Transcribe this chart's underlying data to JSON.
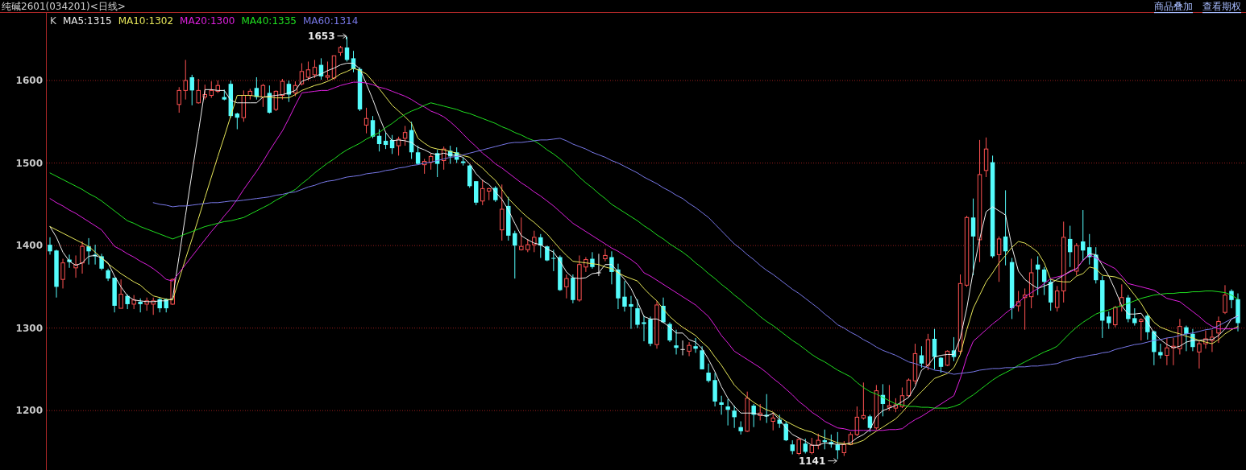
{
  "chart_data": {
    "type": "candlestick",
    "title": "纯碱2601(034201)<日线>",
    "categories": [
      null,
      null,
      null,
      null,
      null,
      null,
      null,
      null,
      null,
      null,
      null,
      null,
      null,
      null,
      null,
      null,
      null,
      null,
      null,
      null,
      null,
      null,
      null,
      null,
      null,
      null,
      null,
      null,
      null,
      null,
      null,
      null,
      null,
      null,
      null,
      null,
      null,
      null,
      null,
      null,
      null,
      null,
      null,
      null,
      null,
      null,
      null,
      null,
      null,
      null,
      null,
      null,
      null,
      null,
      null,
      null,
      null,
      null,
      null,
      null,
      null,
      null,
      null,
      null,
      null,
      null,
      null,
      null,
      null,
      null,
      null,
      null,
      null,
      null,
      null,
      null,
      null,
      null,
      null,
      null,
      null,
      null,
      null,
      null,
      null,
      null,
      null,
      null,
      null,
      null,
      null,
      null,
      null,
      null,
      null,
      null,
      null,
      null,
      null,
      null,
      null,
      null,
      null,
      null,
      null,
      null,
      null,
      null,
      null,
      null,
      null,
      null,
      null,
      null,
      null,
      null,
      null,
      null,
      null,
      null,
      null,
      null,
      null,
      null,
      null,
      null,
      null,
      null,
      null,
      null,
      null,
      null,
      null,
      null,
      null,
      null,
      null,
      null,
      null,
      null,
      null,
      null,
      null,
      null,
      null,
      null,
      null,
      null,
      null,
      null,
      null,
      null,
      null,
      null,
      null,
      null,
      null,
      null,
      null,
      null,
      null,
      null,
      null,
      null,
      null,
      null,
      null,
      null,
      null,
      null,
      null,
      null,
      null,
      null,
      null,
      null,
      null,
      null,
      null,
      null,
      null,
      null,
      null,
      null,
      null
    ],
    "series": [
      {
        "type": "candlestick",
        "colors": [
          "#54fcfc",
          "#54fcfc",
          "#ff5252",
          "#54fcfc",
          "#ff5252",
          "#ff5252",
          "#54fcfc",
          "#54fcfc",
          "#54fcfc",
          "#54fcfc",
          "#54fcfc",
          "#ff5252",
          "#54fcfc",
          "#ff5252",
          "#54fcfc",
          "#ff5252",
          "#ff5252",
          "#54fcfc",
          "#54fcfc",
          "#ff5252",
          "#ff5252",
          "#ff5252",
          "#54fcfc",
          "#ff5252",
          "#ff5252",
          "#ff5252",
          "#ff5252",
          "#54fcfc",
          "#54fcfc",
          "#54fcfc",
          "#ff5252",
          "#ff5252",
          "#54fcfc",
          "#ff5252",
          "#54fcfc",
          "#ff5252",
          "#ff5252",
          "#54fcfc",
          "#ff5252",
          "#ff5252",
          "#ff5252",
          "#ff5252",
          "#54fcfc",
          "#ff5252",
          "#ff5252",
          "#ff5252",
          "#54fcfc",
          "#54fcfc",
          "#54fcfc",
          "#ff5252",
          "#54fcfc",
          "#54fcfc",
          "#54fcfc",
          "#54fcfc",
          "#ff5252",
          "#ff5252",
          "#54fcfc",
          "#54fcfc",
          "#ff5252",
          "#ff5252",
          "#54fcfc",
          "#ff5252",
          "#54fcfc",
          "#54fcfc",
          "#54fcfc",
          "#54fcfc",
          "#54fcfc",
          "#ff5252",
          "#ff5252",
          "#54fcfc",
          "#ff5252",
          "#54fcfc",
          "#54fcfc",
          "#ff5252",
          "#ff5252",
          "#ff5252",
          "#54fcfc",
          "#54fcfc",
          "#54fcfc",
          "#54fcfc",
          "#ff5252",
          "#54fcfc",
          "#ff5252",
          "#ff5252",
          "#54fcfc",
          "#f0f0f0",
          "#ff5252",
          "#54fcfc",
          "#54fcfc",
          "#54fcfc",
          "#54fcfc",
          "#54fcfc",
          "#54fcfc",
          "#54fcfc",
          "#ff5252",
          "#54fcfc",
          "#54fcfc",
          "#54fcfc",
          "#f0f0f0",
          "#ff5252",
          "#54fcfc",
          "#54fcfc",
          "#54fcfc",
          "#54fcfc",
          "#54fcfc",
          "#54fcfc",
          "#54fcfc",
          "#54fcfc",
          "#ff5252",
          "#54fcfc",
          "#ff5252",
          "#54fcfc",
          "#ff5252",
          "#54fcfc",
          "#54fcfc",
          "#54fcfc",
          "#ff5252",
          "#54fcfc",
          "#ff5252",
          "#ff5252",
          "#54fcfc",
          "#54fcfc",
          "#54fcfc",
          "#ff5252",
          "#ff5252",
          "#ff5252",
          "#ff5252",
          "#54fcfc",
          "#ff5252",
          "#54fcfc",
          "#ff5252",
          "#ff5252",
          "#ff5252",
          "#ff5252",
          "#ff5252",
          "#54fcfc",
          "#ff5252",
          "#54fcfc",
          "#54fcfc",
          "#ff5252",
          "#54fcfc",
          "#ff5252",
          "#ff5252",
          "#54fcfc",
          "#ff5252",
          "#ff5252",
          "#54fcfc",
          "#ff5252",
          "#54fcfc",
          "#54fcfc",
          "#ff5252",
          "#ff5252",
          "#ff5252",
          "#54fcfc",
          "#54fcfc",
          "#54fcfc",
          "#ff5252",
          "#ff5252",
          "#54fcfc",
          "#ff5252",
          "#54fcfc",
          "#54fcfc",
          "#54fcfc",
          "#54fcfc",
          "#54fcfc",
          "#ff5252",
          "#ff5252",
          "#54fcfc",
          "#54fcfc",
          "#ff5252",
          "#54fcfc",
          "#54fcfc",
          "#54fcfc",
          "#ff5252",
          "#ff5252",
          "#ff5252",
          "#54fcfc",
          "#54fcfc",
          "#ff5252",
          "#ff5252",
          "#ff5252",
          "#ff5252",
          "#ff5252",
          "#54fcfc",
          "#54fcfc"
        ],
        "ohlc": [
          [
            1401,
            1410,
            1389,
            1393
          ],
          [
            1394,
            1395,
            1337,
            1350
          ],
          [
            1359,
            1384,
            1348,
            1379
          ],
          [
            1383,
            1389,
            1373,
            1380
          ],
          [
            1373,
            1388,
            1361,
            1377
          ],
          [
            1379,
            1405,
            1366,
            1399
          ],
          [
            1399,
            1409,
            1377,
            1393
          ],
          [
            1389,
            1401,
            1377,
            1387
          ],
          [
            1387,
            1390,
            1370,
            1372
          ],
          [
            1370,
            1372,
            1357,
            1360
          ],
          [
            1361,
            1361,
            1319,
            1327
          ],
          [
            1324,
            1359,
            1324,
            1341
          ],
          [
            1339,
            1341,
            1323,
            1329
          ],
          [
            1329,
            1340,
            1323,
            1334
          ],
          [
            1332,
            1336,
            1319,
            1329
          ],
          [
            1329,
            1337,
            1321,
            1333
          ],
          [
            1329,
            1337,
            1316,
            1333
          ],
          [
            1335,
            1337,
            1319,
            1324
          ],
          [
            1335,
            1336,
            1319,
            1324
          ],
          [
            1329,
            1360,
            1328,
            1359
          ],
          [
            1571,
            1592,
            1561,
            1588
          ],
          [
            1588,
            1625,
            1577,
            1600
          ],
          [
            1604,
            1607,
            1570,
            1588
          ],
          [
            1573,
            1602,
            1572,
            1588
          ],
          [
            1580,
            1595,
            1577,
            1583
          ],
          [
            1582,
            1599,
            1579,
            1588
          ],
          [
            1587,
            1600,
            1585,
            1594
          ],
          [
            1580,
            1589,
            1576,
            1577
          ],
          [
            1596,
            1600,
            1555,
            1557
          ],
          [
            1560,
            1561,
            1541,
            1555
          ],
          [
            1555,
            1588,
            1550,
            1582
          ],
          [
            1582,
            1590,
            1577,
            1587
          ],
          [
            1591,
            1604,
            1577,
            1580
          ],
          [
            1580,
            1596,
            1568,
            1594
          ],
          [
            1585,
            1594,
            1560,
            1561
          ],
          [
            1565,
            1588,
            1563,
            1587
          ],
          [
            1582,
            1602,
            1577,
            1599
          ],
          [
            1596,
            1600,
            1574,
            1583
          ],
          [
            1585,
            1599,
            1581,
            1594
          ],
          [
            1596,
            1621,
            1594,
            1611
          ],
          [
            1604,
            1623,
            1600,
            1613
          ],
          [
            1607,
            1625,
            1603,
            1616
          ],
          [
            1619,
            1627,
            1601,
            1605
          ],
          [
            1604,
            1623,
            1601,
            1606
          ],
          [
            1603,
            1630,
            1601,
            1630
          ],
          [
            1634,
            1642,
            1630,
            1640
          ],
          [
            1640,
            1653,
            1623,
            1625
          ],
          [
            1627,
            1636,
            1610,
            1614
          ],
          [
            1614,
            1616,
            1563,
            1565
          ],
          [
            1546,
            1567,
            1536,
            1554
          ],
          [
            1552,
            1557,
            1530,
            1532
          ],
          [
            1533,
            1541,
            1514,
            1523
          ],
          [
            1527,
            1537,
            1517,
            1522
          ],
          [
            1528,
            1534,
            1511,
            1518
          ],
          [
            1521,
            1532,
            1509,
            1529
          ],
          [
            1530,
            1545,
            1521,
            1537
          ],
          [
            1540,
            1550,
            1505,
            1513
          ],
          [
            1513,
            1521,
            1498,
            1499
          ],
          [
            1498,
            1505,
            1487,
            1502
          ],
          [
            1501,
            1512,
            1492,
            1508
          ],
          [
            1512,
            1516,
            1483,
            1499
          ],
          [
            1503,
            1520,
            1492,
            1517
          ],
          [
            1515,
            1521,
            1499,
            1508
          ],
          [
            1513,
            1519,
            1500,
            1504
          ],
          [
            1502,
            1507,
            1497,
            1500
          ],
          [
            1497,
            1498,
            1470,
            1472
          ],
          [
            1478,
            1478,
            1449,
            1452
          ],
          [
            1454,
            1480,
            1449,
            1469
          ],
          [
            1466,
            1470,
            1455,
            1469
          ],
          [
            1470,
            1472,
            1453,
            1455
          ],
          [
            1419,
            1474,
            1406,
            1444
          ],
          [
            1448,
            1459,
            1406,
            1412
          ],
          [
            1415,
            1418,
            1360,
            1400
          ],
          [
            1395,
            1434,
            1394,
            1399
          ],
          [
            1395,
            1408,
            1392,
            1401
          ],
          [
            1401,
            1418,
            1392,
            1410
          ],
          [
            1410,
            1414,
            1385,
            1400
          ],
          [
            1399,
            1400,
            1381,
            1382
          ],
          [
            1385,
            1395,
            1369,
            1384
          ],
          [
            1386,
            1388,
            1345,
            1346
          ],
          [
            1350,
            1365,
            1336,
            1360
          ],
          [
            1361,
            1365,
            1330,
            1334
          ],
          [
            1334,
            1388,
            1332,
            1377
          ],
          [
            1374,
            1386,
            1368,
            1383
          ],
          [
            1384,
            1392,
            1372,
            1374
          ],
          [
            1367,
            1390,
            1363,
            1367
          ],
          [
            1384,
            1396,
            1381,
            1388
          ],
          [
            1386,
            1393,
            1353,
            1368
          ],
          [
            1371,
            1378,
            1323,
            1336
          ],
          [
            1338,
            1357,
            1320,
            1326
          ],
          [
            1329,
            1339,
            1299,
            1326
          ],
          [
            1324,
            1335,
            1300,
            1304
          ],
          [
            1307,
            1315,
            1284,
            1305
          ],
          [
            1311,
            1314,
            1278,
            1281
          ],
          [
            1280,
            1333,
            1275,
            1328
          ],
          [
            1327,
            1337,
            1306,
            1307
          ],
          [
            1305,
            1307,
            1283,
            1285
          ],
          [
            1279,
            1298,
            1268,
            1276
          ],
          [
            1274,
            1285,
            1267,
            1274
          ],
          [
            1272,
            1283,
            1266,
            1279
          ],
          [
            1278,
            1288,
            1270,
            1275
          ],
          [
            1273,
            1278,
            1250,
            1250
          ],
          [
            1246,
            1257,
            1234,
            1236
          ],
          [
            1237,
            1246,
            1205,
            1211
          ],
          [
            1210,
            1218,
            1195,
            1207
          ],
          [
            1205,
            1214,
            1182,
            1201
          ],
          [
            1200,
            1206,
            1179,
            1192
          ],
          [
            1180,
            1187,
            1171,
            1175
          ],
          [
            1175,
            1223,
            1174,
            1215
          ],
          [
            1206,
            1208,
            1180,
            1195
          ],
          [
            1194,
            1208,
            1188,
            1197
          ],
          [
            1195,
            1220,
            1185,
            1193
          ],
          [
            1187,
            1198,
            1176,
            1191
          ],
          [
            1189,
            1195,
            1179,
            1184
          ],
          [
            1184,
            1187,
            1163,
            1164
          ],
          [
            1159,
            1164,
            1147,
            1151
          ],
          [
            1148,
            1167,
            1146,
            1165
          ],
          [
            1160,
            1166,
            1148,
            1150
          ],
          [
            1149,
            1167,
            1147,
            1158
          ],
          [
            1158,
            1172,
            1153,
            1164
          ],
          [
            1164,
            1177,
            1153,
            1162
          ],
          [
            1162,
            1171,
            1155,
            1159
          ],
          [
            1159,
            1174,
            1141,
            1152
          ],
          [
            1149,
            1163,
            1145,
            1159
          ],
          [
            1159,
            1174,
            1158,
            1171
          ],
          [
            1171,
            1205,
            1169,
            1192
          ],
          [
            1191,
            1234,
            1189,
            1194
          ],
          [
            1193,
            1195,
            1174,
            1179
          ],
          [
            1179,
            1231,
            1177,
            1224
          ],
          [
            1219,
            1232,
            1193,
            1208
          ],
          [
            1204,
            1231,
            1200,
            1206
          ],
          [
            1203,
            1215,
            1198,
            1207
          ],
          [
            1205,
            1228,
            1203,
            1218
          ],
          [
            1218,
            1239,
            1216,
            1237
          ],
          [
            1236,
            1281,
            1232,
            1269
          ],
          [
            1267,
            1278,
            1252,
            1257
          ],
          [
            1255,
            1293,
            1249,
            1286
          ],
          [
            1287,
            1299,
            1250,
            1265
          ],
          [
            1264,
            1265,
            1246,
            1253
          ],
          [
            1255,
            1273,
            1254,
            1272
          ],
          [
            1273,
            1289,
            1260,
            1265
          ],
          [
            1272,
            1365,
            1268,
            1354
          ],
          [
            1352,
            1436,
            1350,
            1434
          ],
          [
            1434,
            1457,
            1364,
            1411
          ],
          [
            1407,
            1528,
            1380,
            1486
          ],
          [
            1491,
            1531,
            1483,
            1517
          ],
          [
            1501,
            1509,
            1385,
            1387
          ],
          [
            1389,
            1411,
            1356,
            1408
          ],
          [
            1411,
            1467,
            1376,
            1393
          ],
          [
            1380,
            1385,
            1311,
            1324
          ],
          [
            1327,
            1345,
            1320,
            1332
          ],
          [
            1337,
            1348,
            1298,
            1340
          ],
          [
            1338,
            1384,
            1324,
            1367
          ],
          [
            1377,
            1387,
            1340,
            1371
          ],
          [
            1371,
            1374,
            1340,
            1356
          ],
          [
            1356,
            1359,
            1321,
            1331
          ],
          [
            1325,
            1351,
            1320,
            1345
          ],
          [
            1345,
            1429,
            1331,
            1410
          ],
          [
            1408,
            1424,
            1374,
            1392
          ],
          [
            1369,
            1403,
            1364,
            1400
          ],
          [
            1405,
            1443,
            1382,
            1394
          ],
          [
            1398,
            1414,
            1377,
            1386
          ],
          [
            1389,
            1398,
            1354,
            1358
          ],
          [
            1358,
            1363,
            1288,
            1309
          ],
          [
            1314,
            1320,
            1299,
            1306
          ],
          [
            1304,
            1327,
            1301,
            1325
          ],
          [
            1327,
            1353,
            1320,
            1337
          ],
          [
            1337,
            1340,
            1307,
            1311
          ],
          [
            1312,
            1324,
            1303,
            1306
          ],
          [
            1308,
            1312,
            1285,
            1310
          ],
          [
            1315,
            1317,
            1286,
            1295
          ],
          [
            1296,
            1297,
            1255,
            1271
          ],
          [
            1271,
            1281,
            1263,
            1267
          ],
          [
            1267,
            1288,
            1255,
            1276
          ],
          [
            1276,
            1288,
            1255,
            1278
          ],
          [
            1275,
            1311,
            1268,
            1302
          ],
          [
            1301,
            1303,
            1272,
            1293
          ],
          [
            1293,
            1299,
            1272,
            1277
          ],
          [
            1271,
            1284,
            1251,
            1281
          ],
          [
            1281,
            1297,
            1275,
            1287
          ],
          [
            1285,
            1298,
            1271,
            1289
          ],
          [
            1294,
            1314,
            1282,
            1308
          ],
          [
            1319,
            1352,
            1317,
            1340
          ],
          [
            1345,
            1347,
            1324,
            1334
          ],
          [
            1335,
            1342,
            1296,
            1306
          ]
        ]
      },
      {
        "type": "line",
        "name": "MA5:1315",
        "color": "#f0f0f0",
        "values": [
          1423,
          1410,
          1392,
          1381,
          1376,
          1379,
          1387,
          1388,
          1385,
          1379,
          1363,
          1350,
          1339,
          1334,
          1333,
          1332,
          1332,
          1333,
          1333,
          1336,
          1387,
          1437,
          1488,
          1538,
          1589,
          1589,
          1588,
          1588,
          1576,
          1573,
          1573,
          1573,
          1573,
          1580,
          1581,
          1582,
          1583,
          1585,
          1588,
          1599,
          1602,
          1605,
          1608,
          1612,
          1615,
          1619,
          1621,
          1621,
          1614,
          1596,
          1577,
          1556,
          1537,
          1527,
          1528,
          1527,
          1525,
          1519,
          1516,
          1512,
          1510,
          1512,
          1510,
          1509,
          1507,
          1499,
          1487,
          1479,
          1474,
          1465,
          1456,
          1443,
          1427,
          1412,
          1407,
          1403,
          1401,
          1396,
          1392,
          1381,
          1368,
          1361,
          1360,
          1361,
          1366,
          1367,
          1377,
          1377,
          1368,
          1359,
          1348,
          1332,
          1314,
          1311,
          1311,
          1307,
          1301,
          1294,
          1294,
          1286,
          1283,
          1275,
          1262,
          1247,
          1229,
          1215,
          1205,
          1197,
          1197,
          1197,
          1195,
          1193,
          1197,
          1189,
          1179,
          1171,
          1167,
          1163,
          1158,
          1158,
          1161,
          1160,
          1159,
          1159,
          1161,
          1167,
          1171,
          1177,
          1193,
          1200,
          1203,
          1206,
          1211,
          1216,
          1229,
          1249,
          1255,
          1265,
          1267,
          1268,
          1268,
          1288,
          1324,
          1369,
          1408,
          1441,
          1447,
          1442,
          1437,
          1398,
          1369,
          1359,
          1353,
          1348,
          1351,
          1354,
          1359,
          1364,
          1369,
          1372,
          1382,
          1390,
          1389,
          1376,
          1363,
          1346,
          1327,
          1317,
          1317,
          1318,
          1307,
          1294,
          1286,
          1280,
          1276,
          1278,
          1283,
          1285,
          1285,
          1286,
          1286,
          1291,
          1299,
          1311,
          1315
        ]
      },
      {
        "type": "line",
        "name": "MA10:1302",
        "color": "#e8e85a",
        "values": [
          1423,
          1419,
          1415,
          1411,
          1407,
          1403,
          1399,
          1392,
          1385,
          1378,
          1372,
          1366,
          1361,
          1356,
          1352,
          1345,
          1339,
          1337,
          1335,
          1334,
          1359,
          1384,
          1408,
          1433,
          1458,
          1483,
          1508,
          1532,
          1557,
          1582,
          1582,
          1582,
          1581,
          1580,
          1580,
          1579,
          1579,
          1579,
          1583,
          1588,
          1591,
          1594,
          1596,
          1599,
          1603,
          1608,
          1611,
          1615,
          1612,
          1608,
          1599,
          1590,
          1580,
          1570,
          1563,
          1556,
          1548,
          1530,
          1524,
          1519,
          1517,
          1516,
          1514,
          1512,
          1509,
          1507,
          1500,
          1494,
          1486,
          1479,
          1468,
          1457,
          1449,
          1441,
          1434,
          1428,
          1421,
          1414,
          1405,
          1396,
          1388,
          1381,
          1380,
          1379,
          1378,
          1377,
          1374,
          1372,
          1367,
          1363,
          1360,
          1357,
          1348,
          1340,
          1333,
          1323,
          1314,
          1307,
          1301,
          1296,
          1291,
          1283,
          1276,
          1265,
          1255,
          1243,
          1231,
          1223,
          1216,
          1210,
          1205,
          1201,
          1198,
          1192,
          1187,
          1183,
          1179,
          1176,
          1174,
          1170,
          1167,
          1164,
          1161,
          1160,
          1159,
          1161,
          1164,
          1170,
          1175,
          1180,
          1185,
          1190,
          1198,
          1207,
          1215,
          1223,
          1231,
          1239,
          1242,
          1245,
          1252,
          1268,
          1298,
          1324,
          1340,
          1356,
          1367,
          1379,
          1388,
          1398,
          1405,
          1403,
          1398,
          1392,
          1379,
          1359,
          1357,
          1356,
          1356,
          1363,
          1366,
          1374,
          1372,
          1364,
          1363,
          1362,
          1359,
          1350,
          1340,
          1330,
          1317,
          1307,
          1301,
          1298,
          1295,
          1293,
          1290,
          1288,
          1285,
          1283,
          1281,
          1286,
          1293,
          1298,
          1302
        ]
      },
      {
        "type": "line",
        "name": "MA20:1300",
        "color": "#e020e0",
        "values": [
          1457,
          1452,
          1448,
          1443,
          1439,
          1434,
          1429,
          1424,
          1419,
          1409,
          1399,
          1395,
          1390,
          1386,
          1381,
          1377,
          1372,
          1366,
          1359,
          1357,
          1367,
          1377,
          1387,
          1397,
          1407,
          1417,
          1426,
          1436,
          1445,
          1456,
          1468,
          1479,
          1490,
          1502,
          1515,
          1527,
          1539,
          1554,
          1570,
          1585,
          1586,
          1587,
          1588,
          1588,
          1591,
          1594,
          1596,
          1598,
          1598,
          1597,
          1595,
          1592,
          1590,
          1587,
          1584,
          1581,
          1577,
          1572,
          1568,
          1563,
          1560,
          1556,
          1550,
          1543,
          1535,
          1527,
          1520,
          1512,
          1506,
          1499,
          1494,
          1488,
          1482,
          1476,
          1471,
          1465,
          1460,
          1454,
          1448,
          1441,
          1434,
          1427,
          1422,
          1417,
          1412,
          1407,
          1402,
          1397,
          1393,
          1388,
          1383,
          1377,
          1367,
          1363,
          1358,
          1353,
          1348,
          1343,
          1338,
          1333,
          1328,
          1321,
          1314,
          1303,
          1291,
          1282,
          1272,
          1267,
          1262,
          1257,
          1252,
          1246,
          1239,
          1233,
          1226,
          1219,
          1211,
          1205,
          1198,
          1193,
          1187,
          1183,
          1179,
          1178,
          1176,
          1176,
          1176,
          1176,
          1176,
          1176,
          1177,
          1177,
          1178,
          1184,
          1189,
          1193,
          1198,
          1203,
          1208,
          1213,
          1218,
          1239,
          1265,
          1284,
          1291,
          1298,
          1305,
          1311,
          1318,
          1324,
          1331,
          1338,
          1343,
          1348,
          1354,
          1360,
          1362,
          1364,
          1368,
          1372,
          1382,
          1389,
          1385,
          1380,
          1376,
          1372,
          1363,
          1354,
          1352,
          1350,
          1348,
          1346,
          1341,
          1336,
          1334,
          1332,
          1326,
          1320,
          1314,
          1307,
          1302,
          1299,
          1299,
          1299,
          1300
        ]
      },
      {
        "type": "line",
        "name": "MA40:1335",
        "color": "#20e020",
        "values": [
          1488,
          1484,
          1480,
          1476,
          1472,
          1468,
          1463,
          1459,
          1454,
          1448,
          1442,
          1436,
          1430,
          1427,
          1423,
          1420,
          1417,
          1414,
          1411,
          1408,
          1411,
          1414,
          1417,
          1420,
          1423,
          1425,
          1427,
          1429,
          1430,
          1432,
          1434,
          1438,
          1442,
          1446,
          1450,
          1455,
          1459,
          1464,
          1468,
          1475,
          1481,
          1488,
          1494,
          1500,
          1505,
          1511,
          1516,
          1520,
          1524,
          1529,
          1533,
          1537,
          1543,
          1548,
          1554,
          1559,
          1563,
          1566,
          1570,
          1573,
          1571,
          1569,
          1567,
          1565,
          1562,
          1560,
          1557,
          1554,
          1551,
          1548,
          1544,
          1541,
          1537,
          1534,
          1530,
          1527,
          1522,
          1516,
          1511,
          1505,
          1498,
          1491,
          1483,
          1476,
          1470,
          1463,
          1457,
          1450,
          1445,
          1440,
          1435,
          1430,
          1424,
          1419,
          1413,
          1408,
          1402,
          1397,
          1392,
          1386,
          1379,
          1373,
          1366,
          1360,
          1353,
          1347,
          1340,
          1334,
          1327,
          1321,
          1314,
          1308,
          1303,
          1297,
          1291,
          1285,
          1280,
          1274,
          1268,
          1263,
          1259,
          1254,
          1249,
          1245,
          1241,
          1234,
          1228,
          1223,
          1220,
          1216,
          1212,
          1208,
          1207,
          1205,
          1205,
          1204,
          1204,
          1203,
          1203,
          1203,
          1205,
          1208,
          1214,
          1219,
          1225,
          1231,
          1237,
          1242,
          1246,
          1250,
          1255,
          1259,
          1263,
          1267,
          1271,
          1274,
          1278,
          1286,
          1294,
          1301,
          1307,
          1312,
          1317,
          1320,
          1322,
          1325,
          1327,
          1330,
          1333,
          1336,
          1338,
          1340,
          1341,
          1342,
          1342,
          1343,
          1343,
          1344,
          1344,
          1345,
          1345,
          1344,
          1343,
          1340,
          1335
        ]
      },
      {
        "type": "line",
        "name": "MA60:1314",
        "color": "#7878e8",
        "values": [
          null,
          null,
          null,
          null,
          null,
          null,
          null,
          null,
          null,
          null,
          null,
          null,
          null,
          null,
          null,
          null,
          1452,
          1450,
          1449,
          1447,
          1448,
          1448,
          1449,
          1450,
          1451,
          1452,
          1452,
          1453,
          1454,
          1454,
          1455,
          1456,
          1457,
          1458,
          1459,
          1461,
          1462,
          1464,
          1465,
          1468,
          1471,
          1473,
          1476,
          1478,
          1479,
          1481,
          1483,
          1484,
          1485,
          1487,
          1488,
          1489,
          1491,
          1492,
          1494,
          1495,
          1497,
          1498,
          1500,
          1501,
          1503,
          1505,
          1507,
          1508,
          1510,
          1512,
          1514,
          1516,
          1518,
          1520,
          1522,
          1524,
          1525,
          1525,
          1526,
          1527,
          1528,
          1528,
          1529,
          1530,
          1527,
          1523,
          1520,
          1517,
          1513,
          1510,
          1507,
          1503,
          1500,
          1496,
          1492,
          1488,
          1483,
          1479,
          1475,
          1470,
          1466,
          1461,
          1457,
          1451,
          1446,
          1440,
          1434,
          1426,
          1418,
          1410,
          1402,
          1396,
          1389,
          1383,
          1376,
          1370,
          1365,
          1359,
          1353,
          1347,
          1342,
          1336,
          1330,
          1324,
          1317,
          1311,
          1304,
          1300,
          1295,
          1291,
          1286,
          1282,
          1277,
          1273,
          1270,
          1267,
          1263,
          1259,
          1257,
          1254,
          1252,
          1249,
          1248,
          1246,
          1244,
          1245,
          1246,
          1247,
          1249,
          1250,
          1251,
          1251,
          1252,
          1252,
          1253,
          1253,
          1254,
          1254,
          1255,
          1256,
          1257,
          1260,
          1262,
          1264,
          1265,
          1267,
          1268,
          1270,
          1271,
          1274,
          1276,
          1278,
          1280,
          1281,
          1283,
          1285,
          1286,
          1288,
          1289,
          1291,
          1293,
          1294,
          1296,
          1298,
          1299,
          1303,
          1307,
          1311,
          1314
        ]
      }
    ],
    "ylim": [
      1128,
      1682
    ],
    "yticks": [
      1200,
      1300,
      1400,
      1500,
      1600
    ],
    "grid": "y",
    "tick_labels": "y",
    "legend": "top left",
    "annotations": [
      "K",
      "1653",
      "1141",
      "商品叠加",
      "查看期权"
    ]
  }
}
